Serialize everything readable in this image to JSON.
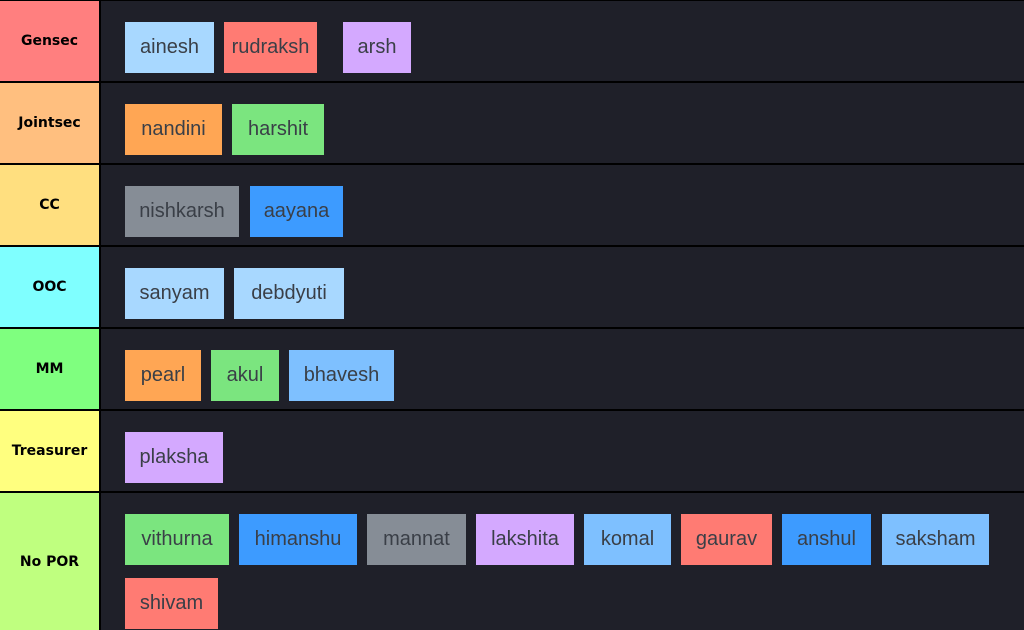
{
  "colors": {
    "background": "#000000",
    "tier_background": "#1f2029",
    "chip_text": "#3a3f47",
    "chip_palette": {
      "light_blue": "#a8d8ff",
      "red": "#ff7b73",
      "purple": "#d4a9ff",
      "orange": "#ffa654",
      "green": "#7be57f",
      "gray": "#868d96",
      "blue": "#3d9bff",
      "sky": "#7ec0ff"
    }
  },
  "tiers": [
    {
      "label": "Gensec",
      "color": "#ff7f7f",
      "items": [
        {
          "name": "ainesh",
          "color": "#a8d8ff"
        },
        {
          "name": "rudraksh",
          "color": "#ff7b73"
        },
        {
          "name": "arsh",
          "color": "#d4a9ff"
        }
      ]
    },
    {
      "label": "Jointsec",
      "color": "#ffbf7f",
      "items": [
        {
          "name": "nandini",
          "color": "#ffa654"
        },
        {
          "name": "harshit",
          "color": "#7be57f"
        }
      ]
    },
    {
      "label": "CC",
      "color": "#ffdf7f",
      "items": [
        {
          "name": "nishkarsh",
          "color": "#868d96"
        },
        {
          "name": "aayana",
          "color": "#3d9bff"
        }
      ]
    },
    {
      "label": "OOC",
      "color": "#7fffff",
      "items": [
        {
          "name": "sanyam",
          "color": "#a8d8ff"
        },
        {
          "name": "debdyuti",
          "color": "#a8d8ff"
        }
      ]
    },
    {
      "label": "MM",
      "color": "#7fff7f",
      "items": [
        {
          "name": "pearl",
          "color": "#ffa654"
        },
        {
          "name": "akul",
          "color": "#7be57f"
        },
        {
          "name": "bhavesh",
          "color": "#7ec0ff"
        }
      ]
    },
    {
      "label": "Treasurer",
      "color": "#ffff7f",
      "items": [
        {
          "name": "plaksha",
          "color": "#d4a9ff"
        }
      ]
    },
    {
      "label": "No POR",
      "color": "#bfff7f",
      "items": [
        {
          "name": "vithurna",
          "color": "#7be57f"
        },
        {
          "name": "himanshu",
          "color": "#3d9bff"
        },
        {
          "name": "mannat",
          "color": "#868d96"
        },
        {
          "name": "lakshita",
          "color": "#d4a9ff"
        },
        {
          "name": "komal",
          "color": "#7ec0ff"
        },
        {
          "name": "gaurav",
          "color": "#ff7b73"
        },
        {
          "name": "anshul",
          "color": "#3d9bff"
        },
        {
          "name": "saksham",
          "color": "#7ec0ff"
        },
        {
          "name": "shivam",
          "color": "#ff7b73"
        }
      ]
    }
  ]
}
